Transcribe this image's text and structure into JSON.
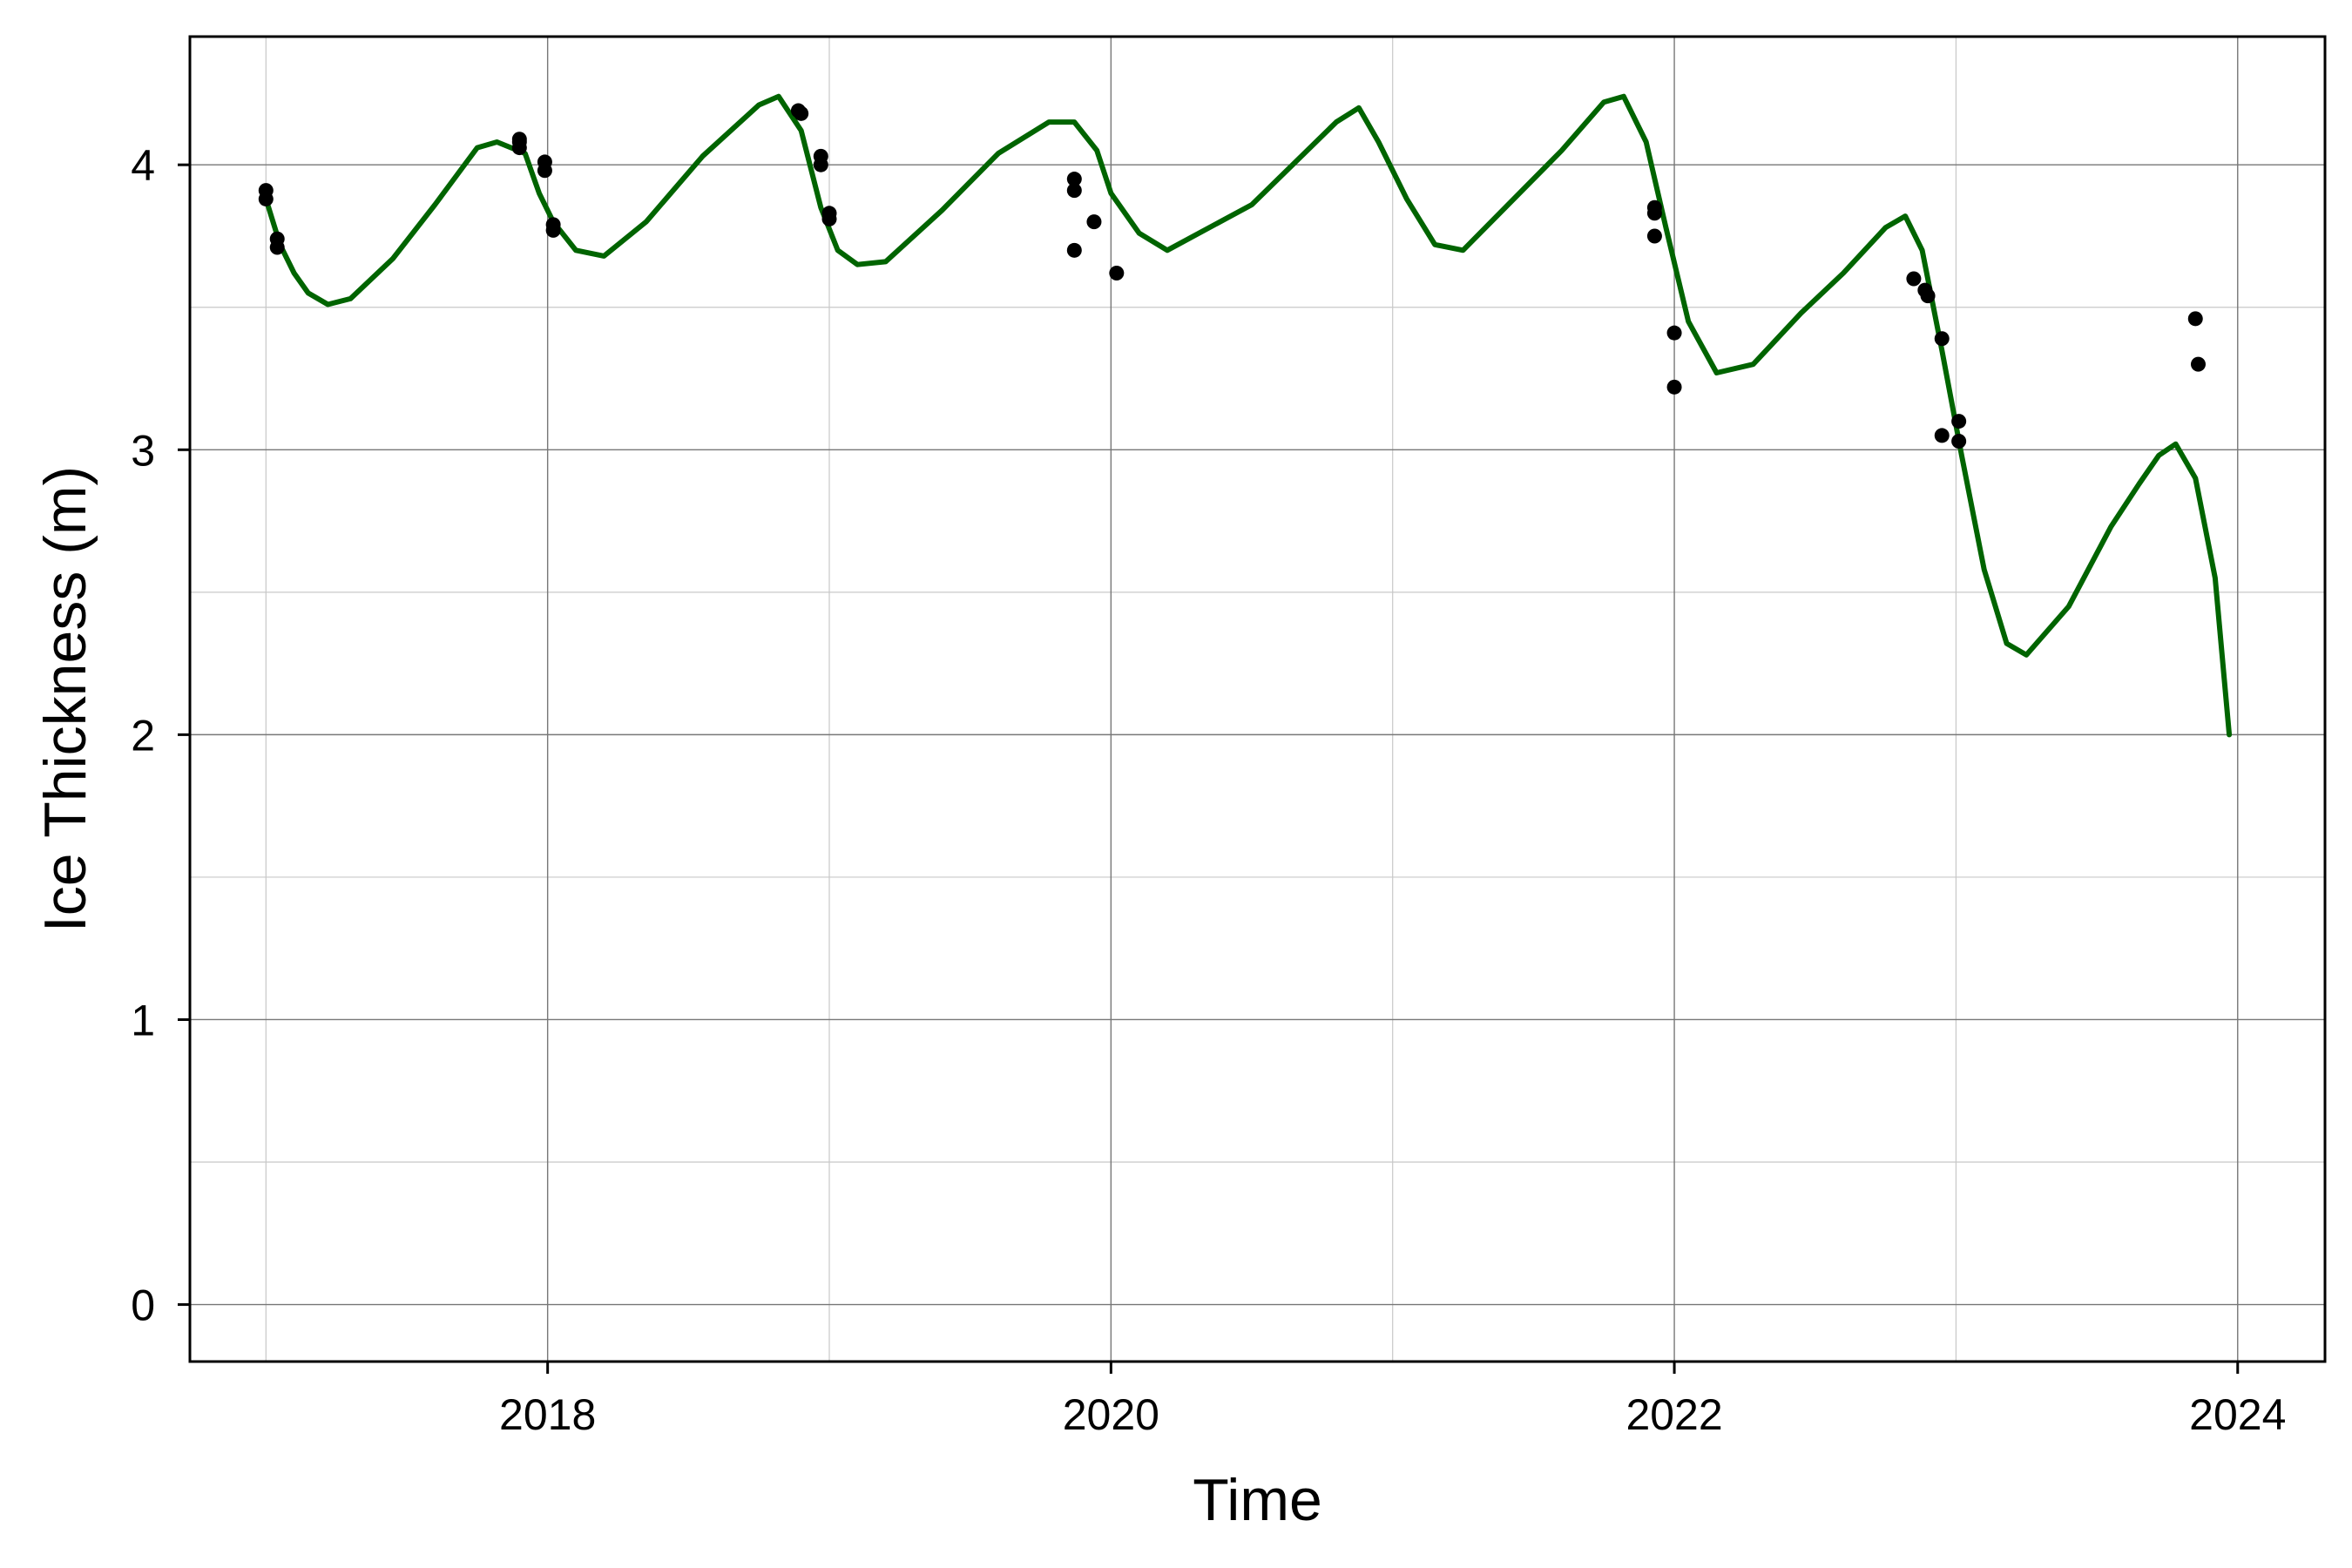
{
  "chart_data": {
    "type": "line",
    "title": "",
    "xlabel": "Time",
    "ylabel": "Ice Thickness (m)",
    "xlim": [
      2016.73,
      2024.31
    ],
    "ylim": [
      -0.2,
      4.45
    ],
    "grid": true,
    "x_major_ticks": [
      2018,
      2020,
      2022,
      2024
    ],
    "x_minor_ticks": [
      2017,
      2019,
      2021,
      2023
    ],
    "y_major_ticks": [
      0,
      1,
      2,
      3,
      4
    ],
    "y_minor_ticks": [
      0.5,
      1.5,
      2.5,
      3.5
    ],
    "series": [
      {
        "kind": "line",
        "color": "#006400",
        "x": [
          2017.0,
          2017.05,
          2017.1,
          2017.15,
          2017.22,
          2017.3,
          2017.45,
          2017.6,
          2017.75,
          2017.82,
          2017.92,
          2017.97,
          2018.02,
          2018.1,
          2018.2,
          2018.35,
          2018.55,
          2018.75,
          2018.82,
          2018.9,
          2018.97,
          2019.03,
          2019.1,
          2019.2,
          2019.4,
          2019.6,
          2019.78,
          2019.87,
          2019.95,
          2020.0,
          2020.1,
          2020.2,
          2020.5,
          2020.8,
          2020.88,
          2020.95,
          2021.05,
          2021.15,
          2021.25,
          2021.45,
          2021.6,
          2021.75,
          2021.82,
          2021.9,
          2021.97,
          2022.05,
          2022.15,
          2022.28,
          2022.45,
          2022.6,
          2022.75,
          2022.82,
          2022.88,
          2022.95,
          2023.02,
          2023.1,
          2023.18,
          2023.25,
          2023.4,
          2023.55,
          2023.65,
          2023.72,
          2023.78,
          2023.85,
          2023.92,
          2023.97
        ],
        "y": [
          3.88,
          3.72,
          3.62,
          3.55,
          3.51,
          3.53,
          3.67,
          3.86,
          4.06,
          4.08,
          4.04,
          3.9,
          3.8,
          3.7,
          3.68,
          3.8,
          4.03,
          4.21,
          4.24,
          4.12,
          3.85,
          3.7,
          3.65,
          3.66,
          3.84,
          4.04,
          4.15,
          4.15,
          4.05,
          3.9,
          3.76,
          3.7,
          3.86,
          4.15,
          4.2,
          4.08,
          3.88,
          3.72,
          3.7,
          3.9,
          4.05,
          4.22,
          4.24,
          4.08,
          3.78,
          3.45,
          3.27,
          3.3,
          3.48,
          3.62,
          3.78,
          3.82,
          3.7,
          3.35,
          2.98,
          2.58,
          2.32,
          2.28,
          2.45,
          2.73,
          2.88,
          2.98,
          3.02,
          2.9,
          2.55,
          2.0
        ]
      },
      {
        "kind": "scatter",
        "color": "#000000",
        "x": [
          2017.0,
          2017.0,
          2017.04,
          2017.04,
          2017.9,
          2017.9,
          2017.9,
          2017.99,
          2017.99,
          2018.02,
          2018.02,
          2018.89,
          2018.9,
          2018.97,
          2018.97,
          2019.0,
          2019.0,
          2019.87,
          2019.87,
          2019.87,
          2019.94,
          2020.02,
          2021.93,
          2021.93,
          2021.93,
          2022.0,
          2022.0,
          2022.85,
          2022.89,
          2022.9,
          2022.95,
          2022.95,
          2023.01,
          2023.01,
          2023.85,
          2023.86
        ],
        "y": [
          3.91,
          3.88,
          3.74,
          3.71,
          4.09,
          4.08,
          4.06,
          4.01,
          3.98,
          3.79,
          3.77,
          4.19,
          4.18,
          4.03,
          4.0,
          3.83,
          3.81,
          3.95,
          3.91,
          3.7,
          3.8,
          3.62,
          3.85,
          3.83,
          3.75,
          3.41,
          3.22,
          3.6,
          3.56,
          3.54,
          3.39,
          3.05,
          3.1,
          3.03,
          3.46,
          3.3
        ]
      }
    ]
  }
}
